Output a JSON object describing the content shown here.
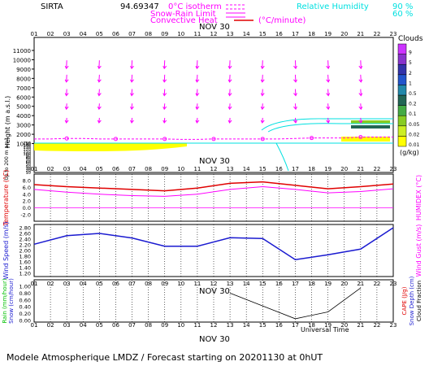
{
  "header": {
    "site": "SIRTA",
    "coords": "94.69347",
    "legend_isotherm": "0°C isotherm",
    "legend_snow": "Snow-Rain Limit",
    "legend_conv": "Convective Heat",
    "legend_conv_unit": "(°C/minute)",
    "legend_rh": "Relative Humidity",
    "rh_90": "90 %",
    "rh_60": "60 %"
  },
  "date_label": "NOV 30",
  "footer": "Modele Atmospherique LMDZ / Forecast starting on 20201130 at 0hUT",
  "universal_time": "Universal Time",
  "colors": {
    "magenta": "#ff00ff",
    "cyan": "#00ffff",
    "red": "#e00000",
    "blue": "#1a1ad0",
    "black": "#000000"
  },
  "chart_data": [
    {
      "type": "line",
      "name": "height-cross-section",
      "ylabel": "Height (m a.s.l.)",
      "yticks": [
        1000,
        2000,
        3000,
        4000,
        5000,
        6000,
        7000,
        8000,
        9000,
        10000,
        11000
      ],
      "xticks": [
        "01",
        "02",
        "03",
        "04",
        "05",
        "06",
        "07",
        "08",
        "09",
        "10",
        "11",
        "12",
        "13",
        "14",
        "15",
        "16",
        "17",
        "18",
        "19",
        "20",
        "21",
        "22",
        "23"
      ],
      "colorbar_title": "Clouds",
      "colorbar_unit": "(g/kg)",
      "colorbar_levels": [
        "0.01",
        "0.02",
        "0.05",
        "0.1",
        "0.2",
        "0.5",
        "1",
        "2",
        "5",
        "9"
      ],
      "colorbar_colors": [
        "#ffff00",
        "#ccee22",
        "#88cc22",
        "#44aa44",
        "#226655",
        "#2288aa",
        "#2255cc",
        "#3333aa",
        "#8833cc",
        "#cc33ff"
      ],
      "isotherm_m": [
        1500,
        1500,
        1550,
        1550,
        1500,
        1500,
        1500,
        1500,
        1500,
        1450,
        1450,
        1500,
        1500,
        1500,
        1500,
        1500,
        1550,
        1600,
        1600,
        1600,
        1700,
        1700,
        1700
      ]
    },
    {
      "type": "area",
      "name": "low-level-clouds",
      "ylabel": "Up to 200 m a.s.l.",
      "yticks": [
        10,
        20,
        30,
        40,
        50,
        60,
        70,
        80,
        90,
        100,
        110,
        120,
        130,
        140,
        150
      ]
    },
    {
      "type": "line",
      "name": "temperature",
      "ylabel": "Temperature (°C)",
      "ylabel2": "HUMIDEX (°C)",
      "yticks": [
        "-2.0",
        "0.0",
        "2.0",
        "4.0",
        "6.0",
        "8.0"
      ],
      "ylim": [
        -2,
        8
      ],
      "x": [
        1,
        3,
        5,
        7,
        9,
        11,
        13,
        15,
        17,
        19,
        21,
        23
      ],
      "series": [
        {
          "values": [
            6.8,
            6.2,
            5.8,
            5.4,
            5.0,
            5.8,
            7.2,
            7.6,
            6.6,
            5.6,
            6.2,
            7.0
          ]
        },
        {
          "values": [
            5.4,
            4.6,
            4.0,
            3.6,
            3.4,
            4.0,
            5.4,
            6.2,
            5.4,
            4.4,
            4.8,
            5.6
          ]
        }
      ]
    },
    {
      "type": "line",
      "name": "wind",
      "ylabel": "Wind Speed (m/s)",
      "ylabel2": "Wind Gust (m/s)",
      "yticks": [
        "1.20",
        "1.40",
        "1.60",
        "1.80",
        "2.00",
        "2.20",
        "2.40",
        "2.60",
        "2.80"
      ],
      "ylim": [
        1.2,
        2.8
      ],
      "x": [
        1,
        3,
        5,
        7,
        9,
        11,
        13,
        15,
        17,
        19,
        21,
        23
      ],
      "series": [
        {
          "values": [
            2.22,
            2.52,
            2.6,
            2.44,
            2.15,
            2.15,
            2.45,
            2.42,
            1.68,
            1.85,
            2.05,
            2.8
          ]
        }
      ]
    },
    {
      "type": "line",
      "name": "precipitation",
      "ylabel": "Rain (mm/hour)",
      "ylabel_snow": "Snow (cm/hour)",
      "ylabel2": "CAPE (J/g)",
      "ylabel2_snow": "Snow Depth (cm)",
      "ylabel2_cloud": "Cloud Fraction",
      "yticks": [
        "0.00",
        "0.20",
        "0.40",
        "0.60",
        "0.80",
        "1.00"
      ],
      "ylim": [
        0,
        1
      ],
      "x": [
        13,
        17,
        19,
        21
      ],
      "series": [
        {
          "values": [
            0.8,
            0.05,
            0.25,
            0.95
          ]
        }
      ]
    }
  ]
}
